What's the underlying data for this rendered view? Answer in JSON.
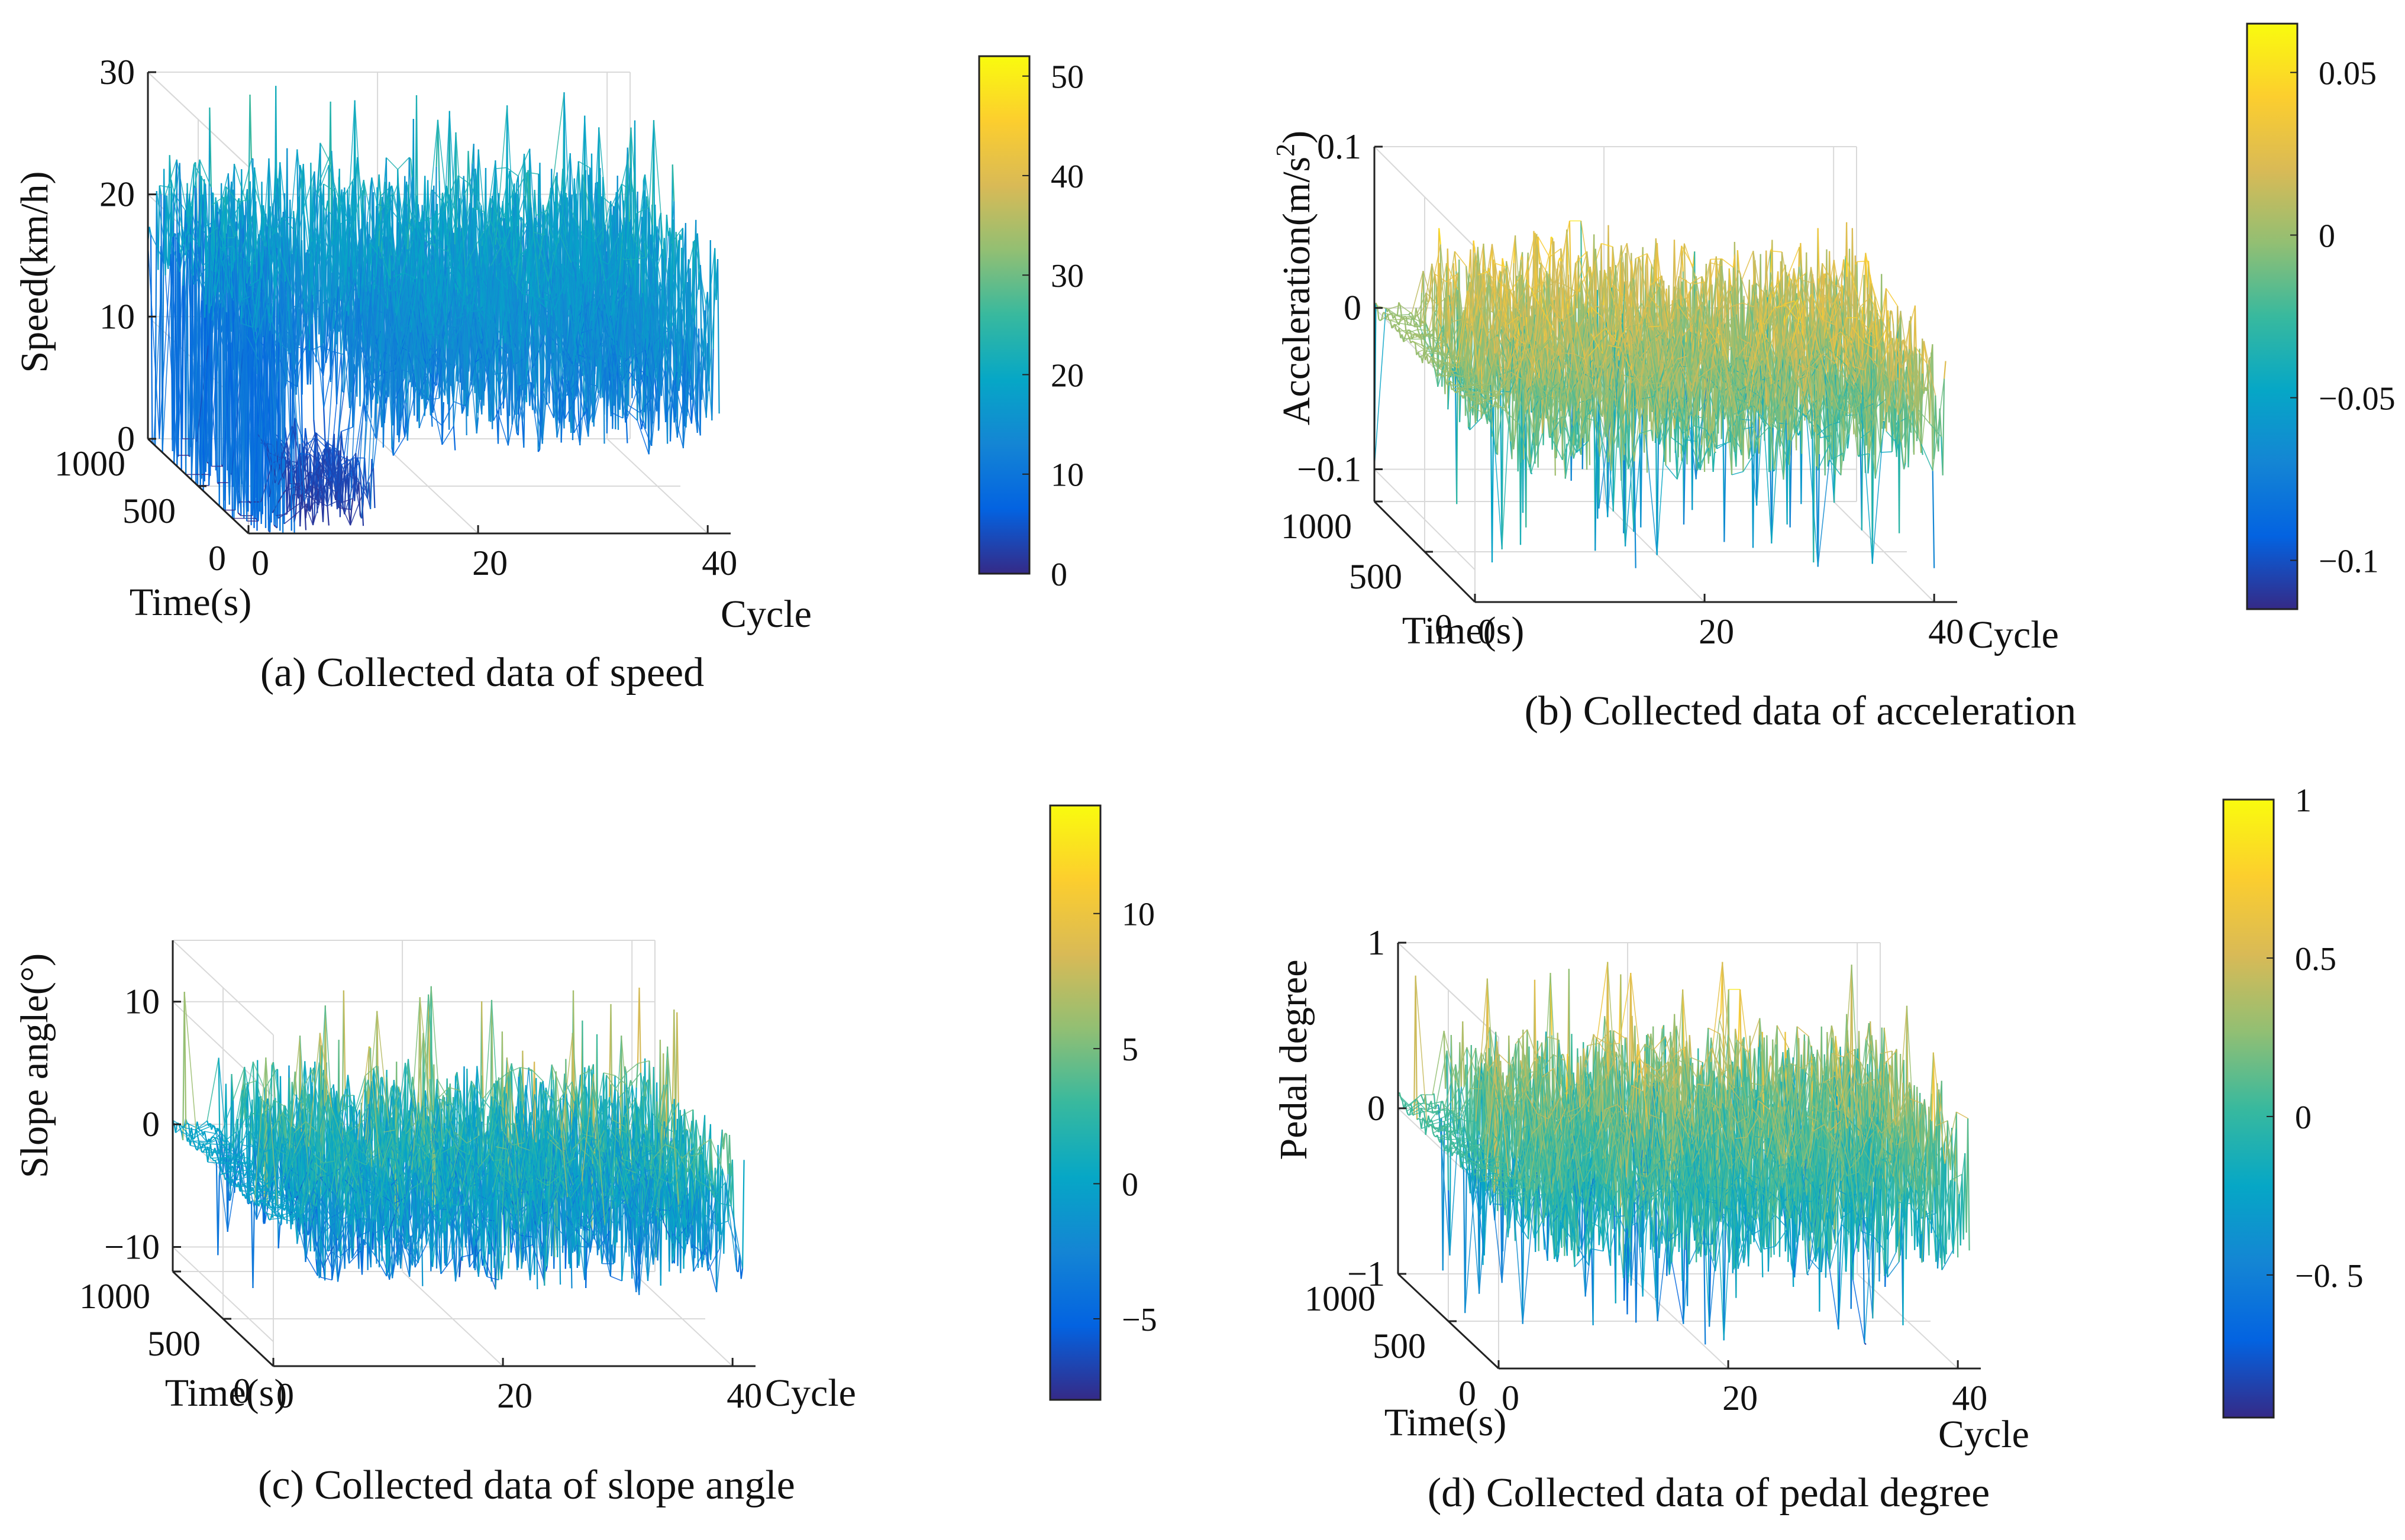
{
  "panels": [
    {
      "id": "a",
      "caption": "(a) Collected data of speed",
      "chart_data": {
        "type": "3d-waterfall",
        "title": "",
        "zlabel": "Speed(km/h)",
        "xlabel": "Cycle",
        "ylabel": "Time(s)",
        "xlim": [
          0,
          42
        ],
        "ylim": [
          0,
          1000
        ],
        "zlim": [
          0,
          30
        ],
        "xticks": [
          "0",
          "20",
          "40"
        ],
        "yticks": [
          "0",
          "500",
          "1000"
        ],
        "zticks": [
          "0",
          "10",
          "20",
          "30"
        ],
        "colorbar": {
          "range": [
            0,
            52
          ],
          "ticks": [
            "0",
            "10",
            "20",
            "30",
            "40",
            "50"
          ],
          "tick_values": [
            0,
            10,
            20,
            30,
            40,
            50
          ]
        },
        "series_profile": {
          "n_cycles": 42,
          "samples_per_cycle": 1000,
          "value_min": 0,
          "value_typical_max": 25,
          "value_peak": 30
        }
      }
    },
    {
      "id": "b",
      "caption": "(b) Collected data of acceleration",
      "chart_data": {
        "type": "3d-mesh",
        "title": "",
        "zlabel": "Acceleration(m/s2)",
        "xlabel": "Cycle",
        "ylabel": "Time(s)",
        "xlim": [
          0,
          42
        ],
        "ylim": [
          0,
          1000
        ],
        "zlim": [
          -0.12,
          0.1
        ],
        "xticks": [
          "0",
          "20",
          "40"
        ],
        "yticks": [
          "0",
          "500",
          "1000"
        ],
        "zticks": [
          "-0.1",
          "0",
          "0.1"
        ],
        "zlabel_parts": {
          "main": "Acceleration(m/s",
          "sup": "2",
          "close": ")"
        },
        "colorbar": {
          "range": [
            -0.115,
            0.065
          ],
          "ticks": [
            "-0.1",
            "-0.05",
            "0",
            "0.05"
          ],
          "tick_values": [
            -0.1,
            -0.05,
            0,
            0.05
          ]
        },
        "series_profile": {
          "n_cycles": 42,
          "samples_per_cycle": 1000,
          "value_min": -0.11,
          "value_max": 0.06
        }
      }
    },
    {
      "id": "c",
      "caption": "(c) Collected data of slope angle",
      "chart_data": {
        "type": "3d-mesh",
        "title": "",
        "zlabel": "Slope angle(°)",
        "xlabel": "Cycle",
        "ylabel": "Time(s)",
        "xlim": [
          0,
          42
        ],
        "ylim": [
          0,
          1000
        ],
        "zlim": [
          -12,
          15
        ],
        "xticks": [
          "0",
          "20",
          "40"
        ],
        "yticks": [
          "0",
          "500",
          "1000"
        ],
        "zticks": [
          "-10",
          "0",
          "10"
        ],
        "colorbar": {
          "range": [
            -8,
            14
          ],
          "ticks": [
            "-5",
            "0",
            "5",
            "10"
          ],
          "tick_values": [
            -5,
            0,
            5,
            10
          ]
        },
        "series_profile": {
          "n_cycles": 42,
          "samples_per_cycle": 1000,
          "value_min": -8,
          "value_max": 13
        }
      }
    },
    {
      "id": "d",
      "caption": "(d) Collected data of pedal degree",
      "chart_data": {
        "type": "3d-mesh",
        "title": "",
        "zlabel": "Pedal degree",
        "xlabel": "Cycle",
        "ylabel": "Time(s)",
        "xlim": [
          0,
          42
        ],
        "ylim": [
          0,
          1000
        ],
        "zlim": [
          -1,
          1
        ],
        "xticks": [
          "0",
          "20",
          "40"
        ],
        "yticks": [
          "0",
          "500",
          "1000"
        ],
        "zticks": [
          "-1",
          "0",
          "1"
        ],
        "colorbar": {
          "range": [
            -0.95,
            1.0
          ],
          "ticks": [
            "-0. 5",
            "0",
            "0.5",
            "1"
          ],
          "tick_values": [
            -0.5,
            0,
            0.5,
            1
          ]
        },
        "series_profile": {
          "n_cycles": 42,
          "samples_per_cycle": 1000,
          "value_min": -0.95,
          "value_max": 1.0
        }
      }
    }
  ],
  "colormap": {
    "name": "parula",
    "stops": [
      "#352a87",
      "#0363e1",
      "#1485d4",
      "#06a7c6",
      "#38b99e",
      "#92bf73",
      "#d9ba56",
      "#fcce2e",
      "#f9fb0e"
    ]
  },
  "grid_color": "#d9d9d9",
  "axis_color": "#222222"
}
